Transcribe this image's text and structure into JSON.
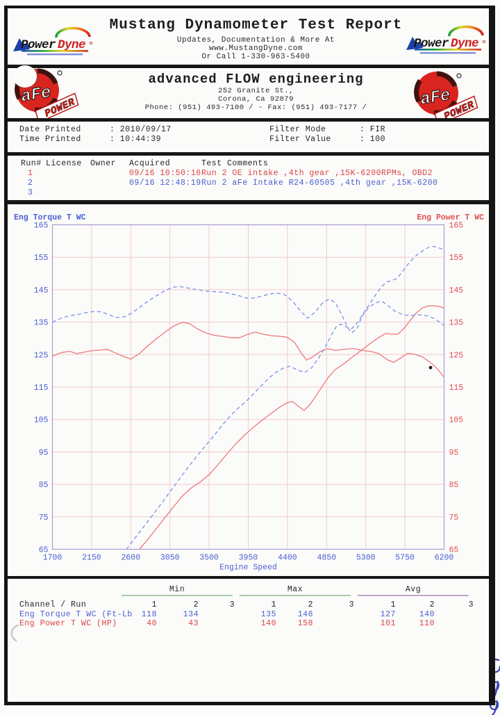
{
  "header": {
    "title": "Mustang Dynamometer Test Report",
    "sub1": "Updates, Documentation & More At",
    "sub2": "www.MustangDyne.com",
    "sub3": "Or Call 1-330-963-5400",
    "logo": {
      "power": "Power",
      "dyne": "Dyne"
    }
  },
  "company": {
    "name": "advanced FLOW engineering",
    "addr1": "252 Granite St.,",
    "addr2": "Corona, Ca  92879",
    "phone": "Phone: (951) 493-7100 /  - Fax: (951) 493-7177 /",
    "logo": {
      "afe": "aFe",
      "power": "POWER"
    }
  },
  "info": {
    "items": [
      {
        "label": "Date Printed",
        "value": ": 2010/09/17"
      },
      {
        "label": "Time Printed",
        "value": ": 10:44:39"
      },
      {
        "label": "Filter Mode",
        "value": ": FIR"
      },
      {
        "label": "Filter Value",
        "value": ": 100"
      }
    ]
  },
  "runs": {
    "headers": {
      "run": "Run#",
      "license": "License",
      "owner": "Owner",
      "acquired": "Acquired",
      "comments": "Test Comments"
    },
    "rows": [
      {
        "num": "1",
        "color": "red",
        "acquired": "09/16 10:50:16",
        "comments": "Run 2 OE intake ,4th gear ,15K-6200RPMs, OBD2"
      },
      {
        "num": "2",
        "color": "blue",
        "acquired": "09/16 12:48:19",
        "comments": "Run 2 aFe Intake R24-60505 ,4th gear ,15K-6200"
      },
      {
        "num": "3",
        "color": "blue",
        "acquired": "",
        "comments": ""
      }
    ]
  },
  "chart_data": {
    "type": "line",
    "xlabel": "Engine Speed",
    "ylabel_left": "Eng Torque T WC",
    "ylabel_right": "Eng Power T WC",
    "xlim": [
      1700,
      6200
    ],
    "ylim": [
      65,
      165
    ],
    "x_ticks": [
      1700,
      2150,
      2600,
      3050,
      3500,
      3950,
      4400,
      4850,
      5300,
      5750,
      6200
    ],
    "y_ticks": [
      165,
      155,
      145,
      135,
      125,
      115,
      105,
      95,
      85,
      75,
      65
    ],
    "grid": true,
    "legend": "none",
    "colors": {
      "run1": "#f08080",
      "run2": "#7e96e8",
      "left_axis": "#4a5fd0",
      "right_axis": "#e05050",
      "grid": "#f2caca",
      "border": "#ab9ccc"
    },
    "series": [
      {
        "name": "Eng Torque T WC - Run 1 (OE intake)",
        "run": 1,
        "color": "red",
        "style": "solid",
        "points": [
          [
            1700,
            124.5
          ],
          [
            1800,
            125.6
          ],
          [
            1900,
            126.0
          ],
          [
            1975,
            125.3
          ],
          [
            2060,
            125.7
          ],
          [
            2150,
            126.2
          ],
          [
            2250,
            126.4
          ],
          [
            2330,
            126.6
          ],
          [
            2400,
            125.8
          ],
          [
            2500,
            124.6
          ],
          [
            2600,
            123.6
          ],
          [
            2700,
            125.3
          ],
          [
            2800,
            127.8
          ],
          [
            2900,
            130.0
          ],
          [
            3000,
            132.0
          ],
          [
            3100,
            133.9
          ],
          [
            3200,
            135.0
          ],
          [
            3280,
            134.5
          ],
          [
            3360,
            133.0
          ],
          [
            3450,
            131.8
          ],
          [
            3550,
            131.0
          ],
          [
            3650,
            130.6
          ],
          [
            3750,
            130.2
          ],
          [
            3850,
            130.2
          ],
          [
            3950,
            131.3
          ],
          [
            4030,
            131.9
          ],
          [
            4120,
            131.3
          ],
          [
            4220,
            130.8
          ],
          [
            4320,
            130.6
          ],
          [
            4400,
            130.3
          ],
          [
            4480,
            128.8
          ],
          [
            4560,
            125.4
          ],
          [
            4620,
            123.3
          ],
          [
            4700,
            124.4
          ],
          [
            4780,
            126.0
          ],
          [
            4860,
            126.8
          ],
          [
            4950,
            126.3
          ],
          [
            5050,
            126.6
          ],
          [
            5150,
            126.9
          ],
          [
            5250,
            126.3
          ],
          [
            5350,
            126.0
          ],
          [
            5450,
            125.3
          ],
          [
            5550,
            123.4
          ],
          [
            5620,
            122.6
          ],
          [
            5700,
            123.9
          ],
          [
            5780,
            125.4
          ],
          [
            5860,
            125.1
          ],
          [
            5950,
            124.3
          ],
          [
            6050,
            122.4
          ],
          [
            6120,
            120.7
          ],
          [
            6200,
            118.0
          ]
        ]
      },
      {
        "name": "Eng Power T WC - Run 1 (OE intake)",
        "run": 1,
        "color": "red",
        "style": "solid",
        "points": [
          [
            2700,
            65.0
          ],
          [
            2800,
            68.2
          ],
          [
            2900,
            71.6
          ],
          [
            3000,
            75.0
          ],
          [
            3100,
            78.4
          ],
          [
            3200,
            81.6
          ],
          [
            3300,
            84.0
          ],
          [
            3400,
            85.8
          ],
          [
            3500,
            88.0
          ],
          [
            3600,
            91.0
          ],
          [
            3700,
            94.2
          ],
          [
            3800,
            97.3
          ],
          [
            3900,
            100.0
          ],
          [
            4000,
            102.4
          ],
          [
            4100,
            104.6
          ],
          [
            4200,
            106.6
          ],
          [
            4300,
            108.6
          ],
          [
            4400,
            110.2
          ],
          [
            4460,
            110.5
          ],
          [
            4530,
            109.0
          ],
          [
            4590,
            107.8
          ],
          [
            4660,
            109.6
          ],
          [
            4730,
            112.4
          ],
          [
            4800,
            115.2
          ],
          [
            4870,
            118.0
          ],
          [
            4950,
            120.4
          ],
          [
            5050,
            122.2
          ],
          [
            5150,
            124.3
          ],
          [
            5250,
            126.3
          ],
          [
            5350,
            128.4
          ],
          [
            5450,
            130.3
          ],
          [
            5530,
            131.5
          ],
          [
            5600,
            131.3
          ],
          [
            5670,
            131.3
          ],
          [
            5740,
            133.1
          ],
          [
            5810,
            135.5
          ],
          [
            5880,
            137.8
          ],
          [
            5950,
            139.4
          ],
          [
            6020,
            140.0
          ],
          [
            6100,
            140.0
          ],
          [
            6150,
            139.8
          ],
          [
            6200,
            139.3
          ]
        ]
      },
      {
        "name": "Eng Torque T WC - Run 2 (aFe intake)",
        "run": 2,
        "color": "blue",
        "style": "dashed",
        "points": [
          [
            1700,
            135.0
          ],
          [
            1800,
            136.2
          ],
          [
            1900,
            137.0
          ],
          [
            2000,
            137.4
          ],
          [
            2100,
            138.0
          ],
          [
            2180,
            138.3
          ],
          [
            2260,
            138.2
          ],
          [
            2350,
            137.3
          ],
          [
            2430,
            136.4
          ],
          [
            2520,
            136.6
          ],
          [
            2600,
            137.6
          ],
          [
            2700,
            139.5
          ],
          [
            2800,
            141.5
          ],
          [
            2900,
            143.2
          ],
          [
            3000,
            144.8
          ],
          [
            3080,
            145.7
          ],
          [
            3160,
            146.0
          ],
          [
            3260,
            145.5
          ],
          [
            3360,
            145.0
          ],
          [
            3460,
            144.6
          ],
          [
            3560,
            144.4
          ],
          [
            3660,
            144.2
          ],
          [
            3760,
            143.7
          ],
          [
            3860,
            143.0
          ],
          [
            3960,
            142.2
          ],
          [
            4060,
            142.7
          ],
          [
            4160,
            143.4
          ],
          [
            4260,
            144.0
          ],
          [
            4360,
            143.6
          ],
          [
            4450,
            141.7
          ],
          [
            4550,
            138.5
          ],
          [
            4630,
            136.2
          ],
          [
            4720,
            138.1
          ],
          [
            4800,
            140.8
          ],
          [
            4880,
            142.1
          ],
          [
            4950,
            141.0
          ],
          [
            5020,
            137.5
          ],
          [
            5090,
            133.4
          ],
          [
            5140,
            131.7
          ],
          [
            5200,
            133.1
          ],
          [
            5260,
            137.0
          ],
          [
            5330,
            139.4
          ],
          [
            5410,
            140.9
          ],
          [
            5480,
            141.5
          ],
          [
            5560,
            140.0
          ],
          [
            5640,
            138.3
          ],
          [
            5720,
            137.4
          ],
          [
            5800,
            137.0
          ],
          [
            5900,
            137.3
          ],
          [
            6000,
            137.0
          ],
          [
            6080,
            136.2
          ],
          [
            6140,
            135.2
          ],
          [
            6200,
            134.0
          ]
        ]
      },
      {
        "name": "Eng Power T WC - Run 2 (aFe intake)",
        "run": 2,
        "color": "blue",
        "style": "dashed",
        "points": [
          [
            2550,
            65.0
          ],
          [
            2650,
            68.5
          ],
          [
            2750,
            72.0
          ],
          [
            2850,
            75.5
          ],
          [
            2950,
            79.0
          ],
          [
            3050,
            82.7
          ],
          [
            3150,
            86.3
          ],
          [
            3250,
            90.0
          ],
          [
            3350,
            93.4
          ],
          [
            3450,
            96.6
          ],
          [
            3550,
            99.8
          ],
          [
            3650,
            103.2
          ],
          [
            3750,
            106.3
          ],
          [
            3850,
            108.9
          ],
          [
            3950,
            111.2
          ],
          [
            4050,
            114.0
          ],
          [
            4150,
            116.8
          ],
          [
            4250,
            119.2
          ],
          [
            4350,
            120.8
          ],
          [
            4430,
            121.4
          ],
          [
            4520,
            120.2
          ],
          [
            4600,
            119.5
          ],
          [
            4680,
            121.0
          ],
          [
            4760,
            124.0
          ],
          [
            4840,
            127.6
          ],
          [
            4900,
            130.8
          ],
          [
            4960,
            133.6
          ],
          [
            5020,
            134.4
          ],
          [
            5080,
            133.5
          ],
          [
            5140,
            133.0
          ],
          [
            5200,
            134.7
          ],
          [
            5260,
            137.2
          ],
          [
            5330,
            140.0
          ],
          [
            5410,
            143.3
          ],
          [
            5480,
            145.9
          ],
          [
            5540,
            147.4
          ],
          [
            5600,
            147.8
          ],
          [
            5660,
            148.5
          ],
          [
            5720,
            150.5
          ],
          [
            5780,
            152.7
          ],
          [
            5840,
            154.5
          ],
          [
            5900,
            156.0
          ],
          [
            5960,
            157.1
          ],
          [
            6030,
            158.2
          ],
          [
            6090,
            158.3
          ],
          [
            6140,
            157.9
          ],
          [
            6200,
            157.3
          ]
        ]
      }
    ]
  },
  "summary": {
    "channel_header": "Channel / Run",
    "groups": [
      "Min",
      "Max",
      "Avg"
    ],
    "runcols": [
      "1",
      "2",
      "3"
    ],
    "rows": [
      {
        "label": "Eng Torque T WC (Ft-Lb",
        "color": "blue",
        "values": [
          "118",
          "134",
          "",
          "135",
          "146",
          "",
          "127",
          "140",
          ""
        ]
      },
      {
        "label": "Eng Power T WC (HP)",
        "color": "red",
        "values": [
          "40",
          "43",
          "",
          "140",
          "158",
          "",
          "101",
          "110",
          ""
        ]
      }
    ]
  }
}
